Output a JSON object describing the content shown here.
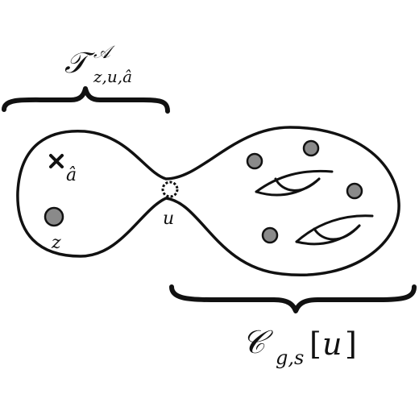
{
  "labels": {
    "top_symbol": "𝒯",
    "top_superscript": "𝒜",
    "top_subscript": "z,u,â",
    "bottom_symbol": "𝒞",
    "bottom_subscript": "g,s",
    "bottom_bracket_open": "[",
    "bottom_argument": "u",
    "bottom_bracket_close": "]",
    "marked_point_a": "â",
    "marked_point_z": "z",
    "node_u": "u"
  },
  "colors": {
    "stroke": "#111111",
    "puncture_fill": "#8a8a8a",
    "background": "#ffffff"
  },
  "icons": {
    "marked_point_a": "cross-mark-icon",
    "node_u": "dotted-circle-node-icon",
    "puncture": "filled-circle-puncture-icon"
  }
}
